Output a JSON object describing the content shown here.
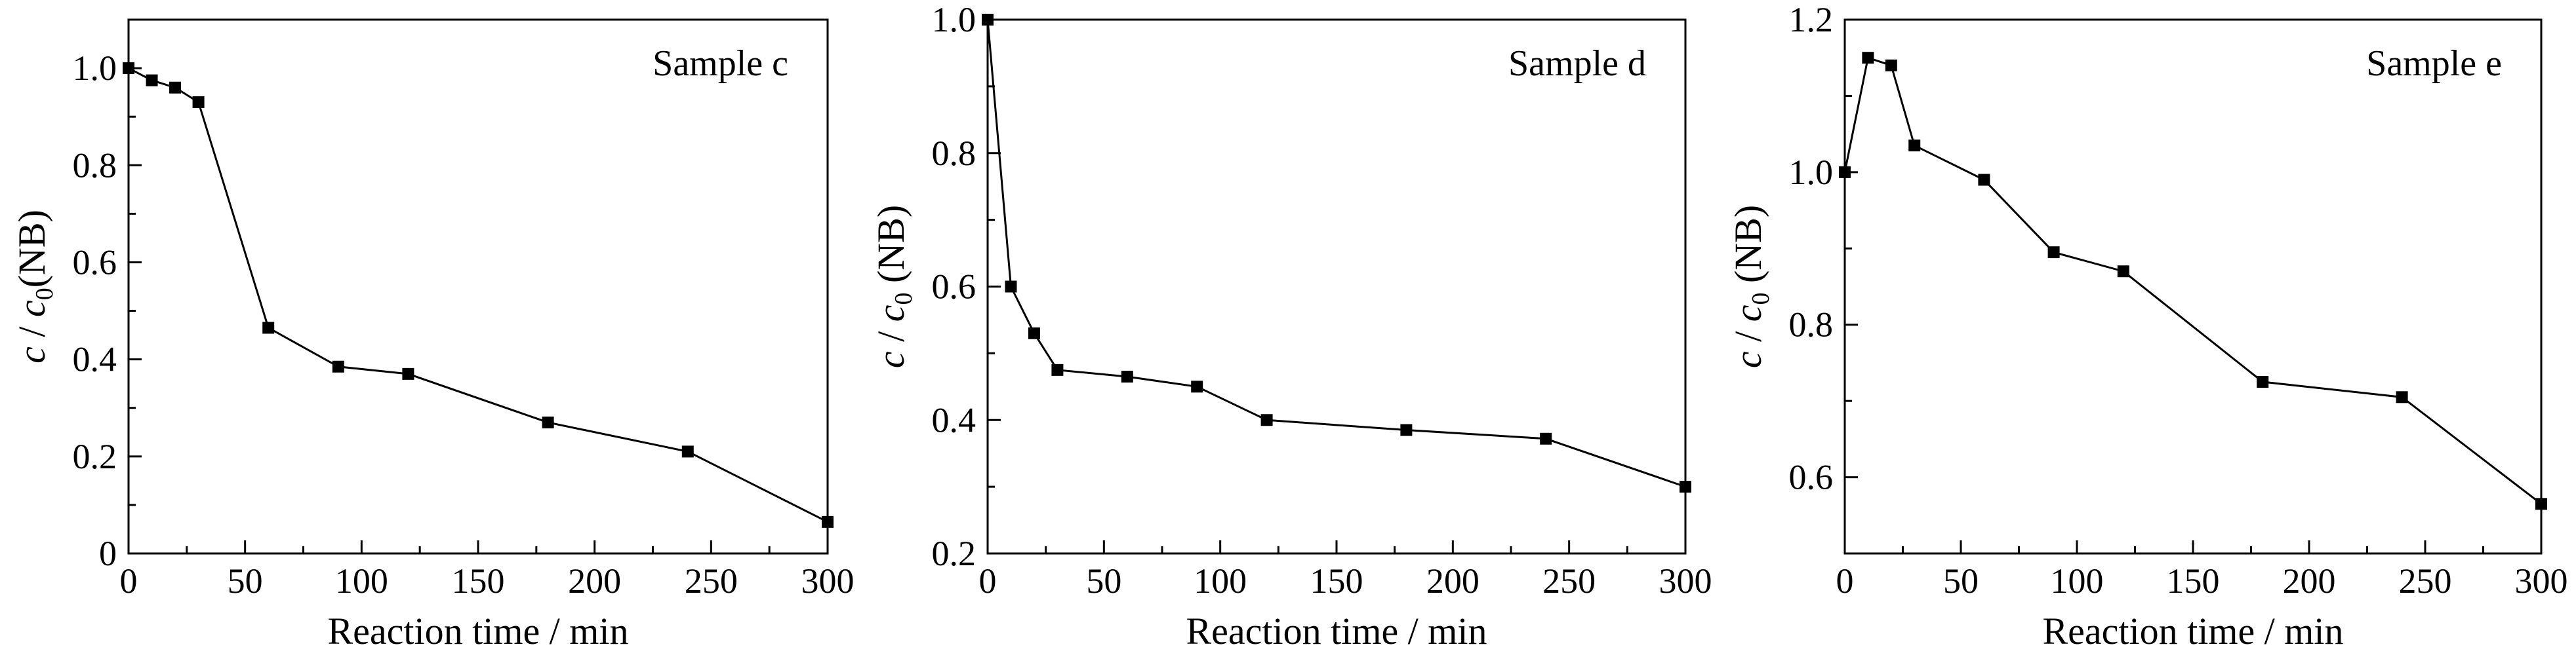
{
  "chart_data": [
    {
      "type": "line",
      "annotation": "Sample c",
      "xlabel": "Reaction time / min",
      "ylabel": {
        "italic": "c",
        "mid": " / ",
        "italic2": "c",
        "sub": "0",
        "tail": "(NB)"
      },
      "xlim": [
        0,
        300
      ],
      "ylim": [
        0,
        1.1
      ],
      "xticks": [
        0,
        50,
        100,
        150,
        200,
        250,
        300
      ],
      "yticks": [
        0,
        0.2,
        0.4,
        0.6,
        0.8,
        1.0
      ],
      "ytick_labels": [
        "0",
        "0.2",
        "0.4",
        "0.6",
        "0.8",
        "1.0"
      ],
      "grid": false,
      "series": [
        {
          "x": [
            0,
            10,
            20,
            30,
            60,
            90,
            120,
            180,
            240,
            300
          ],
          "y": [
            1.0,
            0.975,
            0.96,
            0.93,
            0.465,
            0.385,
            0.37,
            0.27,
            0.21,
            0.065
          ]
        }
      ]
    },
    {
      "type": "line",
      "annotation": "Sample d",
      "xlabel": "Reaction time / min",
      "ylabel": {
        "italic": "c",
        "mid": " / ",
        "italic2": "c",
        "sub": "0",
        "tail": " (NB)"
      },
      "xlim": [
        0,
        300
      ],
      "ylim": [
        0.2,
        1.0
      ],
      "xticks": [
        0,
        50,
        100,
        150,
        200,
        250,
        300
      ],
      "yticks": [
        0.2,
        0.4,
        0.6,
        0.8,
        1.0
      ],
      "ytick_labels": [
        "0.2",
        "0.4",
        "0.6",
        "0.8",
        "1.0"
      ],
      "grid": false,
      "series": [
        {
          "x": [
            0,
            10,
            20,
            30,
            60,
            90,
            120,
            180,
            240,
            300
          ],
          "y": [
            1.0,
            0.6,
            0.53,
            0.475,
            0.465,
            0.45,
            0.4,
            0.385,
            0.372,
            0.3
          ]
        }
      ]
    },
    {
      "type": "line",
      "annotation": "Sample e",
      "xlabel": "Reaction time / min",
      "ylabel": {
        "italic": "c",
        "mid": " / ",
        "italic2": "c",
        "sub": "0",
        "tail": " (NB)"
      },
      "xlim": [
        0,
        300
      ],
      "ylim": [
        0.5,
        1.2
      ],
      "xticks": [
        0,
        50,
        100,
        150,
        200,
        250,
        300
      ],
      "yticks": [
        0.6,
        0.8,
        1.0,
        1.2
      ],
      "ytick_labels": [
        "0.6",
        "0.8",
        "1.0",
        "1.2"
      ],
      "grid": false,
      "series": [
        {
          "x": [
            0,
            10,
            20,
            30,
            60,
            90,
            120,
            180,
            240,
            300
          ],
          "y": [
            1.0,
            1.15,
            1.14,
            1.035,
            0.99,
            0.895,
            0.87,
            0.725,
            0.705,
            0.565
          ]
        }
      ]
    }
  ]
}
